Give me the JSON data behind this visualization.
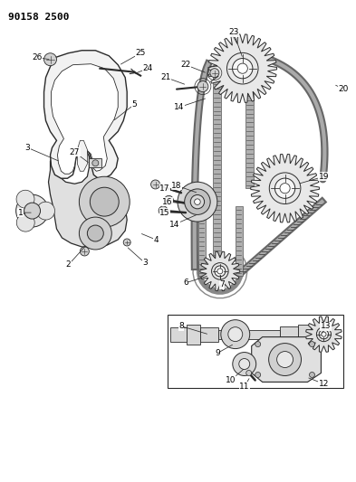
{
  "title": "90158 2500",
  "bg_color": "#ffffff",
  "title_fontsize": 8,
  "title_weight": "bold",
  "fig_width": 3.93,
  "fig_height": 5.33,
  "dpi": 100,
  "line_color": "#2a2a2a",
  "fill_light": "#e8e8e8",
  "fill_mid": "#cccccc",
  "fill_dark": "#aaaaaa",
  "belt_color": "#555555",
  "belt_tooth_color": "#333333",
  "cover_fill": "#f2f2f2",
  "engine_fill": "#e0e0e0"
}
